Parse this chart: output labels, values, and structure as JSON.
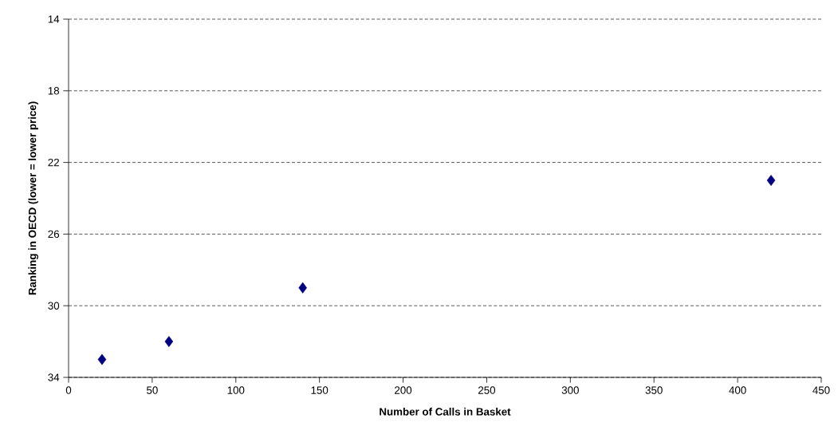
{
  "chart_data": {
    "type": "scatter",
    "xlabel": "Number of Calls in Basket",
    "ylabel": "Ranking in OECD (lower = lower price)",
    "x": [
      20,
      60,
      140,
      420
    ],
    "values": [
      33,
      32,
      29,
      23
    ],
    "color": "#000080",
    "marker": "diamond",
    "xlim": [
      0,
      450
    ],
    "xticks": [
      0,
      50,
      100,
      150,
      200,
      250,
      300,
      350,
      400,
      450
    ],
    "ylim": [
      34,
      14
    ],
    "yticks": [
      14,
      18,
      22,
      26,
      30,
      34
    ],
    "grid": "y"
  }
}
